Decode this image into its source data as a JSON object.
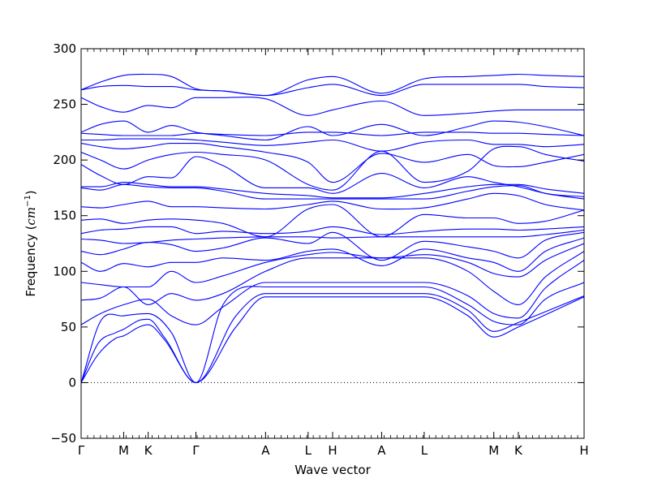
{
  "chart_data": {
    "type": "line",
    "title": "",
    "xlabel": "Wave vector",
    "ylabel": "Frequency (cm⁻¹)",
    "ylabel_main": "Frequency (",
    "ylabel_unit": "cm",
    "ylabel_exp": "−1",
    "ylabel_close": ")",
    "ylim": [
      -50,
      300
    ],
    "yticks": [
      -50,
      0,
      50,
      100,
      150,
      200,
      250,
      300
    ],
    "x_range": [
      0,
      39
    ],
    "high_symmetry_points": [
      {
        "label": "Γ",
        "x": 0
      },
      {
        "label": "M",
        "x": 3.3
      },
      {
        "label": "K",
        "x": 5.2
      },
      {
        "label": "Γ",
        "x": 8.9
      },
      {
        "label": "A",
        "x": 14.3
      },
      {
        "label": "L",
        "x": 17.6
      },
      {
        "label": "H",
        "x": 19.5
      },
      {
        "label": "A",
        "x": 23.3
      },
      {
        "label": "L",
        "x": 26.6
      },
      {
        "label": "M",
        "x": 32.0
      },
      {
        "label": "K",
        "x": 33.9
      },
      {
        "label": "H",
        "x": 39.0
      }
    ],
    "zero_line": 0,
    "line_color": "#0000ff",
    "grid": false,
    "legend": "none",
    "series": [
      {
        "x": [
          0,
          1.3,
          2.7,
          3.3,
          4.5,
          5.2,
          6.5,
          8.9,
          12,
          14.3,
          17.6,
          19.5,
          23.3,
          26.6,
          30,
          32,
          33.9,
          39
        ],
        "values": [
          0,
          25,
          40,
          42,
          50,
          52,
          38,
          0,
          50,
          77,
          77,
          77,
          77,
          77,
          60,
          41,
          50,
          77
        ]
      },
      {
        "x": [
          0,
          1.3,
          2.7,
          3.3,
          4.5,
          5.2,
          6.5,
          8.9,
          12,
          14.3,
          17.6,
          19.5,
          23.3,
          26.6,
          30,
          32,
          33.9,
          39
        ],
        "values": [
          0,
          35,
          45,
          48,
          56,
          57,
          40,
          0,
          60,
          80,
          80,
          80,
          80,
          80,
          65,
          46,
          54,
          78
        ]
      },
      {
        "x": [
          0,
          1.5,
          3.3,
          5.2,
          7,
          8.9,
          11,
          14.3,
          17.6,
          19.5,
          23.3,
          26.6,
          30,
          32,
          33.9,
          36,
          39
        ],
        "values": [
          0,
          55,
          60,
          62,
          45,
          0,
          70,
          86,
          86,
          86,
          86,
          86,
          70,
          55,
          52,
          75,
          90
        ]
      },
      {
        "x": [
          0,
          1.5,
          3.3,
          5.2,
          7,
          8.9,
          11,
          14.3,
          17.6,
          19.5,
          23.3,
          26.6,
          30,
          32,
          33.9,
          36,
          39
        ],
        "values": [
          52,
          62,
          70,
          75,
          60,
          52,
          68,
          90,
          90,
          90,
          90,
          90,
          78,
          62,
          58,
          85,
          110
        ]
      },
      {
        "x": [
          0,
          1.5,
          3.3,
          5.2,
          7,
          8.9,
          11,
          14.3,
          17.6,
          19.5,
          23.3,
          26.6,
          30,
          32,
          33.9,
          36,
          39
        ],
        "values": [
          74,
          76,
          86,
          70,
          80,
          74,
          80,
          100,
          112,
          112,
          112,
          112,
          100,
          82,
          70,
          95,
          118
        ]
      },
      {
        "x": [
          0,
          1.5,
          3.3,
          5.2,
          7,
          8.9,
          11,
          14.3,
          17.6,
          19.5,
          23.3,
          26.6,
          30,
          32,
          33.9,
          36,
          39
        ],
        "values": [
          90,
          88,
          86,
          86,
          100,
          90,
          96,
          108,
          115,
          117,
          112,
          115,
          108,
          98,
          95,
          110,
          125
        ]
      },
      {
        "x": [
          0,
          1.5,
          3.3,
          5.2,
          7,
          8.9,
          11,
          14.3,
          17.6,
          19.5,
          23.3,
          26.6,
          30,
          32,
          33.9,
          36,
          39
        ],
        "values": [
          108,
          100,
          107,
          104,
          108,
          108,
          112,
          110,
          118,
          120,
          105,
          120,
          112,
          108,
          100,
          118,
          130
        ]
      },
      {
        "x": [
          0,
          1.5,
          3.3,
          5.2,
          7,
          8.9,
          11,
          14.3,
          17.6,
          19.5,
          23.3,
          26.6,
          30,
          32,
          33.9,
          36,
          39
        ],
        "values": [
          118,
          115,
          120,
          126,
          124,
          118,
          121,
          130,
          125,
          135,
          110,
          127,
          122,
          118,
          112,
          128,
          135
        ]
      },
      {
        "x": [
          0,
          1.5,
          3.3,
          5.2,
          7,
          8.9,
          11,
          14.3,
          17.6,
          19.5,
          23.3,
          26.6,
          30,
          32,
          33.9,
          36,
          39
        ],
        "values": [
          129,
          128,
          125,
          126,
          128,
          129,
          130,
          131,
          131,
          130,
          131,
          131,
          131,
          131,
          131,
          133,
          137
        ]
      },
      {
        "x": [
          0,
          1.5,
          3.3,
          5.2,
          7,
          8.9,
          11,
          14.3,
          17.6,
          19.5,
          23.3,
          26.6,
          30,
          32,
          33.9,
          36,
          39
        ],
        "values": [
          134,
          137,
          138,
          140,
          140,
          134,
          136,
          134,
          136,
          140,
          133,
          136,
          138,
          138,
          137,
          138,
          140
        ]
      },
      {
        "x": [
          0,
          1.5,
          3.3,
          5.2,
          7,
          8.9,
          11,
          14.3,
          17.6,
          19.5,
          23.3,
          26.6,
          30,
          32,
          33.9,
          36,
          39
        ],
        "values": [
          146,
          147,
          143,
          146,
          147,
          146,
          143,
          131,
          156,
          160,
          131,
          151,
          148,
          148,
          143,
          145,
          155
        ]
      },
      {
        "x": [
          0,
          1.5,
          3.3,
          5.2,
          7,
          8.9,
          11,
          14.3,
          17.6,
          19.5,
          23.3,
          26.6,
          30,
          32,
          33.9,
          36,
          39
        ],
        "values": [
          158,
          157,
          160,
          163,
          158,
          158,
          157,
          156,
          160,
          163,
          156,
          157,
          165,
          170,
          168,
          160,
          155
        ]
      },
      {
        "x": [
          0,
          1.5,
          3.3,
          5.2,
          7,
          8.9,
          11,
          14.3,
          17.6,
          19.5,
          23.3,
          26.6,
          30,
          32,
          33.9,
          36,
          39
        ],
        "values": [
          175,
          173,
          178,
          176,
          175,
          175,
          172,
          165,
          165,
          165,
          165,
          165,
          172,
          176,
          177,
          170,
          167
        ]
      },
      {
        "x": [
          0,
          1.5,
          3.3,
          5.2,
          7,
          8.9,
          11,
          14.3,
          17.6,
          19.5,
          23.3,
          26.6,
          30,
          32,
          33.9,
          36,
          39
        ],
        "values": [
          176,
          176,
          180,
          178,
          176,
          176,
          174,
          170,
          168,
          166,
          166,
          170,
          176,
          178,
          178,
          174,
          170
        ]
      },
      {
        "x": [
          0,
          1.5,
          3.3,
          5.2,
          7,
          8.9,
          11,
          14.3,
          17.6,
          19.5,
          23.3,
          26.6,
          30,
          32,
          33.9,
          36,
          39
        ],
        "values": [
          196,
          186,
          178,
          185,
          184,
          203,
          195,
          175,
          175,
          170,
          188,
          175,
          185,
          180,
          176,
          170,
          165
        ]
      },
      {
        "x": [
          0,
          1.5,
          3.3,
          5.2,
          7,
          8.9,
          11,
          14.3,
          17.6,
          19.5,
          23.3,
          26.6,
          30,
          32,
          33.9,
          36,
          39
        ],
        "values": [
          207,
          200,
          192,
          200,
          205,
          207,
          205,
          200,
          178,
          173,
          208,
          180,
          190,
          210,
          212,
          205,
          199
        ]
      },
      {
        "x": [
          0,
          1.5,
          3.3,
          5.2,
          7,
          8.9,
          11,
          14.3,
          17.6,
          19.5,
          23.3,
          26.6,
          30,
          32,
          33.9,
          36,
          39
        ],
        "values": [
          215,
          212,
          210,
          212,
          215,
          215,
          212,
          207,
          198,
          180,
          206,
          198,
          205,
          195,
          194,
          198,
          205
        ]
      },
      {
        "x": [
          0,
          1.5,
          3.3,
          5.2,
          7,
          8.9,
          11,
          14.3,
          17.6,
          19.5,
          23.3,
          26.6,
          30,
          32,
          33.9,
          36,
          39
        ],
        "values": [
          218,
          218,
          219,
          219,
          219,
          218,
          216,
          213,
          216,
          218,
          208,
          216,
          218,
          214,
          214,
          212,
          214
        ]
      },
      {
        "x": [
          0,
          1.5,
          3.3,
          5.2,
          7,
          8.9,
          11,
          14.3,
          17.6,
          19.5,
          23.3,
          26.6,
          30,
          32,
          33.9,
          36,
          39
        ],
        "values": [
          224,
          223,
          222,
          222,
          222,
          224,
          223,
          222,
          225,
          225,
          222,
          225,
          225,
          224,
          224,
          223,
          222
        ]
      },
      {
        "x": [
          0,
          1.5,
          3.3,
          5.2,
          7,
          8.9,
          11,
          14.3,
          17.6,
          19.5,
          23.3,
          26.6,
          30,
          32,
          33.9,
          36,
          39
        ],
        "values": [
          225,
          232,
          235,
          225,
          231,
          225,
          222,
          218,
          230,
          222,
          232,
          222,
          230,
          235,
          234,
          230,
          222
        ]
      },
      {
        "x": [
          0,
          1.5,
          3.3,
          5.2,
          7,
          8.9,
          11,
          14.3,
          17.6,
          19.5,
          23.3,
          26.6,
          30,
          32,
          33.9,
          36,
          39
        ],
        "values": [
          256,
          248,
          243,
          249,
          247,
          256,
          256,
          255,
          240,
          245,
          253,
          240,
          242,
          244,
          245,
          245,
          245
        ]
      },
      {
        "x": [
          0,
          1.5,
          3.3,
          5.2,
          7,
          8.9,
          11,
          14.3,
          17.6,
          19.5,
          23.3,
          26.6,
          30,
          32,
          33.9,
          36,
          39
        ],
        "values": [
          263,
          266,
          267,
          266,
          266,
          263,
          262,
          258,
          265,
          268,
          258,
          268,
          268,
          268,
          268,
          266,
          265
        ]
      },
      {
        "x": [
          0,
          1.5,
          3.3,
          5.2,
          7,
          8.9,
          11,
          14.3,
          17.6,
          19.5,
          23.3,
          26.6,
          30,
          32,
          33.9,
          36,
          39
        ],
        "values": [
          263,
          270,
          276,
          277,
          275,
          264,
          262,
          258,
          272,
          275,
          260,
          273,
          275,
          276,
          277,
          276,
          275
        ]
      }
    ]
  }
}
